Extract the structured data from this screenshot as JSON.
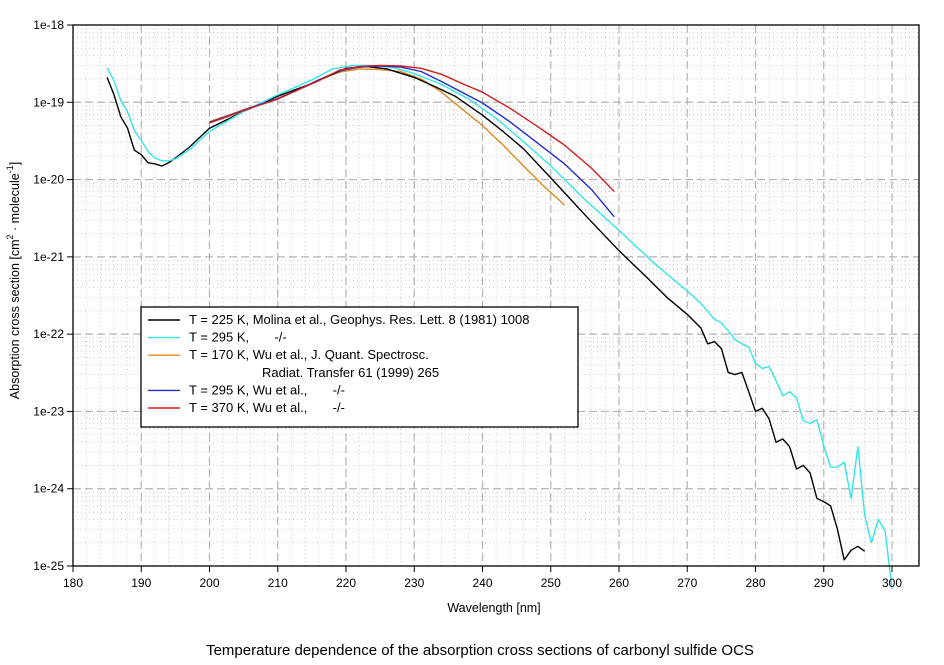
{
  "chart_data": {
    "type": "line",
    "title": "Temperature dependence of the absorption cross sections of carbonyl sulfide OCS",
    "xlabel": "Wavelength [nm]",
    "ylabel": "Absorption cross section [cm^2 · molecule^-1]",
    "ylabel_parts": {
      "main": "Absorption cross section [cm",
      "sup1": "2",
      "mid": " · molecule",
      "sup2": "-1",
      "end": "]"
    },
    "xlim": [
      180,
      304
    ],
    "ylim": [
      1e-25,
      1e-18
    ],
    "yscale": "log",
    "grid": true,
    "x_ticks": [
      180,
      190,
      200,
      210,
      220,
      230,
      240,
      250,
      260,
      270,
      280,
      290,
      300
    ],
    "x_tick_labels": [
      "180",
      "190",
      "200",
      "210",
      "220",
      "230",
      "240",
      "250",
      "260",
      "270",
      "280",
      "290",
      "300"
    ],
    "y_ticks": [
      1e-18,
      1e-19,
      1e-20,
      1e-21,
      1e-22,
      1e-23,
      1e-24,
      1e-25
    ],
    "y_tick_labels": [
      "1e-18",
      "1e-19",
      "1e-20",
      "1e-21",
      "1e-22",
      "1e-23",
      "1e-24",
      "1e-25"
    ],
    "legend_placement": "center-left",
    "series": [
      {
        "name": "T = 225 K, Molina et al., Geophys. Res. Lett. 8 (1981) 1008",
        "legend_lines": [
          "T = 225 K, Molina et al., Geophys. Res. Lett. 8 (1981) 1008"
        ],
        "color": "#000000",
        "x": [
          185,
          186,
          187,
          188,
          189,
          190,
          191,
          192,
          193,
          194,
          195,
          197,
          200,
          205,
          210,
          215,
          220,
          223,
          226,
          230,
          233,
          236,
          240,
          243,
          246,
          250,
          255,
          260,
          264,
          267,
          270,
          272,
          273,
          274,
          275,
          276,
          277,
          278,
          279,
          280,
          281,
          282,
          283,
          284,
          285,
          286,
          287,
          288,
          289,
          290,
          291,
          292,
          293,
          294,
          295,
          296
        ],
        "y": [
          2.1e-19,
          1.25e-19,
          6.5e-20,
          4.6e-20,
          2.4e-20,
          2.1e-20,
          1.65e-20,
          1.6e-20,
          1.5e-20,
          1.65e-20,
          1.9e-20,
          2.6e-20,
          4.6e-20,
          7.6e-20,
          1.2e-19,
          1.75e-19,
          2.75e-19,
          2.9e-19,
          2.7e-19,
          2.1e-19,
          1.6e-19,
          1.2e-19,
          6.8e-20,
          4.2e-20,
          2.5e-20,
          1.05e-20,
          3.5e-21,
          1.2e-21,
          5.5e-22,
          3e-22,
          1.8e-22,
          1.2e-22,
          7.5e-23,
          8e-23,
          6.5e-23,
          3.2e-23,
          3e-23,
          3.2e-23,
          1.8e-23,
          1e-23,
          1.1e-23,
          8e-24,
          4e-24,
          4.4e-24,
          3.5e-24,
          1.8e-24,
          2e-24,
          1.6e-24,
          7.5e-25,
          6.8e-25,
          6e-25,
          3e-25,
          1.2e-25,
          1.6e-25,
          1.8e-25,
          1.55e-25
        ]
      },
      {
        "name": "T = 295 K, -/-",
        "legend_lines": [
          "T = 295 K,       -/-"
        ],
        "color": "#33e6e6",
        "x": [
          185,
          186,
          187,
          188,
          189,
          190,
          191,
          192,
          193,
          194,
          195,
          197,
          200,
          205,
          210,
          215,
          218,
          221,
          224,
          227,
          230,
          234,
          238,
          242,
          246,
          250,
          255,
          260,
          265,
          270,
          272,
          274,
          275,
          276,
          277,
          278,
          279,
          280,
          281,
          282,
          283,
          284,
          285,
          286,
          287,
          288,
          289,
          290,
          291,
          292,
          293,
          294,
          295,
          296,
          297,
          298,
          299,
          300
        ],
        "y": [
          2.8e-19,
          1.9e-19,
          1.05e-19,
          7.5e-20,
          4.3e-20,
          3.2e-20,
          2.3e-20,
          1.9e-20,
          1.75e-20,
          1.75e-20,
          1.85e-20,
          2.4e-20,
          4.2e-20,
          7.6e-20,
          1.25e-19,
          1.95e-19,
          2.7e-19,
          3e-19,
          3e-19,
          2.8e-19,
          2.35e-19,
          1.7e-19,
          1.1e-19,
          6.2e-20,
          3.1e-20,
          1.5e-20,
          5.5e-21,
          2.2e-21,
          8.5e-22,
          3.6e-22,
          2.5e-22,
          1.55e-22,
          1.4e-22,
          1.1e-22,
          8.5e-23,
          7.5e-23,
          6.8e-23,
          4.2e-23,
          3.6e-23,
          3.8e-23,
          2.5e-23,
          1.6e-23,
          1.8e-23,
          1.5e-23,
          7.6e-24,
          7e-24,
          7.8e-24,
          3.6e-24,
          1.9e-24,
          1.9e-24,
          2.2e-24,
          7.5e-25,
          3.5e-24,
          4.5e-25,
          2e-25,
          4e-25,
          2.8e-25,
          5e-26
        ]
      },
      {
        "name": "T = 170 K, Wu et al., J. Quant. Spectrosc. Radiat. Transfer 61 (1999) 265",
        "legend_lines": [
          "T = 170 K, Wu et al., J. Quant. Spectrosc.",
          "Radiat. Transfer 61 (1999) 265"
        ],
        "color": "#e08a1e",
        "x": [
          200,
          203,
          206,
          210,
          213,
          216,
          219,
          222,
          225,
          228,
          231,
          234,
          237,
          240,
          243,
          246,
          249,
          252
        ],
        "y": [
          5.6e-20,
          6.9e-20,
          8.6e-20,
          1.12e-19,
          1.45e-19,
          1.95e-19,
          2.45e-19,
          2.7e-19,
          2.65e-19,
          2.5e-19,
          2e-19,
          1.35e-19,
          8.2e-20,
          5e-20,
          2.8e-20,
          1.5e-20,
          8.2e-21,
          4.7e-21
        ]
      },
      {
        "name": "T = 295 K, Wu et al., -/-",
        "legend_lines": [
          "T = 295 K, Wu et al.,       -/-"
        ],
        "color": "#1f2fd0",
        "x": [
          200,
          203,
          206,
          210,
          213,
          216,
          219,
          222,
          225,
          228,
          231,
          234,
          237,
          240,
          244,
          248,
          252,
          256,
          259.3
        ],
        "y": [
          5.5e-20,
          6.8e-20,
          8.5e-20,
          1.12e-19,
          1.45e-19,
          1.95e-19,
          2.55e-19,
          2.85e-19,
          2.95e-19,
          2.85e-19,
          2.5e-19,
          1.85e-19,
          1.35e-19,
          9.8e-20,
          5.6e-20,
          3e-20,
          1.6e-20,
          7.4e-21,
          3.3e-21
        ]
      },
      {
        "name": "T = 370 K, Wu et al., -/-",
        "legend_lines": [
          "T = 370 K, Wu et al.,       -/-"
        ],
        "color": "#d01c1c",
        "x": [
          200,
          203,
          206,
          210,
          213,
          216,
          219,
          222,
          225,
          228,
          231,
          234,
          237,
          240,
          244,
          248,
          252,
          256,
          259.3
        ],
        "y": [
          5.4e-20,
          6.7e-20,
          8.4e-20,
          1.1e-19,
          1.45e-19,
          1.9e-19,
          2.6e-19,
          2.9e-19,
          3e-19,
          2.95e-19,
          2.75e-19,
          2.3e-19,
          1.75e-19,
          1.35e-19,
          8.4e-20,
          4.9e-20,
          2.8e-20,
          1.4e-20,
          7e-21
        ]
      }
    ]
  }
}
